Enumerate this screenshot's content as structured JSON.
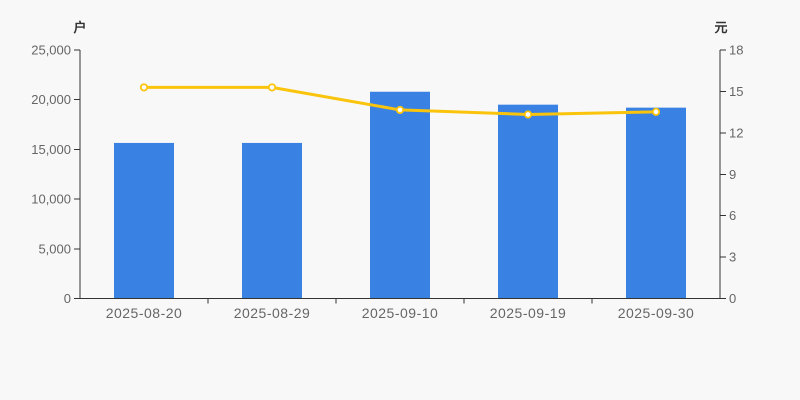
{
  "chart_data": {
    "type": "bar+line",
    "title": "",
    "categories": [
      "2025-08-20",
      "2025-08-29",
      "2025-09-10",
      "2025-09-19",
      "2025-09-30"
    ],
    "series": [
      {
        "name": "户",
        "type": "bar",
        "axis": "left",
        "values": [
          15650,
          15650,
          20800,
          19500,
          19200
        ],
        "color": "#3981e3"
      },
      {
        "name": "元",
        "type": "line",
        "axis": "right",
        "values": [
          15.29,
          15.29,
          13.66,
          13.33,
          13.52
        ],
        "color": "#fbc40c",
        "marker": "hollow-circle",
        "marker_fill": "#ffffff"
      }
    ],
    "left_axis": {
      "label": "户",
      "min": 0,
      "max": 25000,
      "tick_step": 5000,
      "tick_labels": [
        "25,000",
        "20,000",
        "15,000",
        "10,000",
        "5,000",
        "0"
      ]
    },
    "right_axis": {
      "label": "元",
      "min": 0,
      "max": 18,
      "tick_step": 3,
      "tick_labels": [
        "18",
        "15",
        "12",
        "9",
        "6",
        "3",
        "0"
      ]
    },
    "grid": false,
    "legend": false
  },
  "colors": {
    "background": "#f8f8f8",
    "axis_line": "#333333",
    "tick_text": "#666666",
    "axis_title_text": "#333333",
    "bar": "#3981e3",
    "line": "#fbc40c",
    "marker_fill": "#ffffff"
  }
}
